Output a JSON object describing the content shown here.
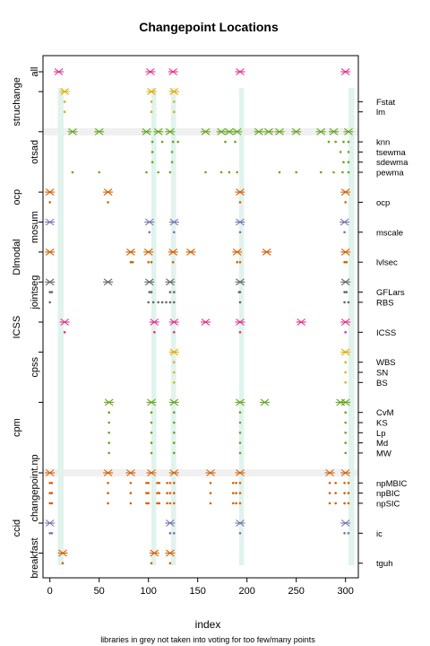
{
  "chart_data": {
    "type": "scatter",
    "title": "Changepoint Locations",
    "xlabel": "index",
    "caption": "libraries in grey not taken into voting for too few/many points",
    "xlim": [
      -7,
      313
    ],
    "x_ticks": [
      0,
      50,
      100,
      150,
      200,
      250,
      300
    ],
    "consensus_bands": [
      [
        8,
        14
      ],
      [
        103,
        108
      ],
      [
        123,
        128
      ],
      [
        192,
        197
      ],
      [
        303,
        309
      ]
    ],
    "grey_rows": [
      "otsad",
      "changepoint.np"
    ],
    "libraries": [
      {
        "name": "all",
        "color": "#e7298a",
        "methods": [],
        "summary": [
          9,
          102,
          125,
          193,
          300
        ]
      },
      {
        "name": "struchange",
        "color": "#e6ab02",
        "methods": [
          {
            "name": "Fstat",
            "points": [
              15,
              103,
              126
            ]
          },
          {
            "name": "lm",
            "points": [
              15,
              103,
              126
            ]
          }
        ],
        "summary": [
          15,
          103,
          126
        ]
      },
      {
        "name": "otsad",
        "color": "#66a61e",
        "methods": [
          {
            "name": "knn",
            "points": [
              104,
              114,
              125,
              130,
              178,
              188,
              283,
              290,
              298,
              303
            ]
          },
          {
            "name": "tsewma",
            "points": [
              104,
              124,
              295,
              303
            ]
          },
          {
            "name": "sdewma",
            "points": [
              104,
              124,
              298,
              303
            ]
          },
          {
            "name": "pewma",
            "points": [
              23,
              50,
              98,
              110,
              122,
              158,
              174,
              182,
              190,
              233,
              250,
              275,
              288,
              297,
              303
            ]
          }
        ],
        "summary": [
          23,
          50,
          98,
          110,
          122,
          158,
          174,
          182,
          190,
          212,
          222,
          233,
          250,
          275,
          288,
          303
        ]
      },
      {
        "name": "ocp",
        "color": "#d95f02",
        "methods": [
          {
            "name": "ocp",
            "points": [
              0,
              59,
              193,
              300
            ]
          }
        ],
        "summary": [
          0,
          59,
          193,
          300
        ]
      },
      {
        "name": "mosum",
        "color": "#7570b3",
        "methods": [
          {
            "name": "mscale",
            "points": [
              101,
              126,
              193,
              299
            ]
          }
        ],
        "summary": [
          0,
          101,
          126,
          193,
          299
        ]
      },
      {
        "name": "Dlmodal",
        "color": "#d95f02",
        "methods": [
          {
            "name": "lvlsec",
            "points": [
              82,
              84,
              100,
              103,
              125,
              190,
              193,
              299,
              301
            ]
          }
        ],
        "summary": [
          0,
          82,
          100,
          125,
          143,
          190,
          220,
          300
        ]
      },
      {
        "name": "jointseg",
        "color": "#666666",
        "methods": [
          {
            "name": "GFLars",
            "points": [
              0,
              2,
              101,
              103,
              122,
              126,
              192,
              193,
              299,
              301
            ]
          },
          {
            "name": "RBS",
            "points": [
              0,
              100,
              105,
              110,
              114,
              118,
              122,
              126,
              193,
              299,
              303
            ]
          }
        ],
        "summary": [
          0,
          59,
          101,
          122,
          193,
          300
        ]
      },
      {
        "name": "ICSS",
        "color": "#e7298a",
        "methods": [
          {
            "name": "ICSS",
            "points": [
              15,
              106,
              126,
              193,
              300
            ]
          }
        ],
        "summary": [
          15,
          106,
          126,
          158,
          193,
          255,
          300
        ]
      },
      {
        "name": "cpss",
        "color": "#e6ab02",
        "methods": [
          {
            "name": "WBS",
            "points": [
              126,
              300
            ]
          },
          {
            "name": "SN",
            "points": [
              126,
              300
            ]
          },
          {
            "name": "BS",
            "points": [
              126,
              300
            ]
          }
        ],
        "summary": [
          126,
          300
        ]
      },
      {
        "name": "cpm",
        "color": "#66a61e",
        "methods": [
          {
            "name": "CvM",
            "points": [
              60,
              103,
              126,
              193,
              300
            ]
          },
          {
            "name": "KS",
            "points": [
              60,
              103,
              126,
              193,
              300
            ]
          },
          {
            "name": "Lp",
            "points": [
              60,
              103,
              126,
              193,
              300
            ]
          },
          {
            "name": "Md",
            "points": [
              60,
              103,
              126,
              193,
              300
            ]
          },
          {
            "name": "MW",
            "points": [
              60,
              103,
              126,
              193,
              300
            ]
          }
        ],
        "summary": [
          60,
          103,
          126,
          193,
          218,
          295,
          300
        ]
      },
      {
        "name": "changepoint.np",
        "color": "#d95f02",
        "methods": [
          {
            "name": "npMBIC",
            "points": [
              0,
              2,
              59,
              82,
              98,
              100,
              109,
              111,
              119,
              122,
              126,
              163,
              186,
              189,
              193,
              284,
              290,
              299,
              303
            ]
          },
          {
            "name": "npBIC",
            "points": [
              0,
              2,
              59,
              82,
              98,
              100,
              109,
              111,
              119,
              122,
              126,
              163,
              186,
              189,
              193,
              284,
              290,
              299,
              303
            ]
          },
          {
            "name": "npSIC",
            "points": [
              0,
              2,
              59,
              82,
              98,
              100,
              109,
              111,
              119,
              122,
              126,
              163,
              186,
              189,
              193,
              284,
              290,
              299,
              303
            ]
          }
        ],
        "summary": [
          0,
          59,
          82,
          103,
          126,
          163,
          193,
          284,
          300
        ]
      },
      {
        "name": "ccid",
        "color": "#7570b3",
        "methods": [
          {
            "name": "ic",
            "points": [
              0,
              2,
              122,
              126,
              193,
              299,
              303
            ]
          }
        ],
        "summary": [
          0,
          122,
          193,
          300
        ]
      },
      {
        "name": "breakfast",
        "color": "#d95f02",
        "methods": [
          {
            "name": "tguh",
            "points": [
              13,
              103,
              122
            ]
          }
        ],
        "summary": [
          13,
          106,
          122
        ]
      }
    ]
  }
}
